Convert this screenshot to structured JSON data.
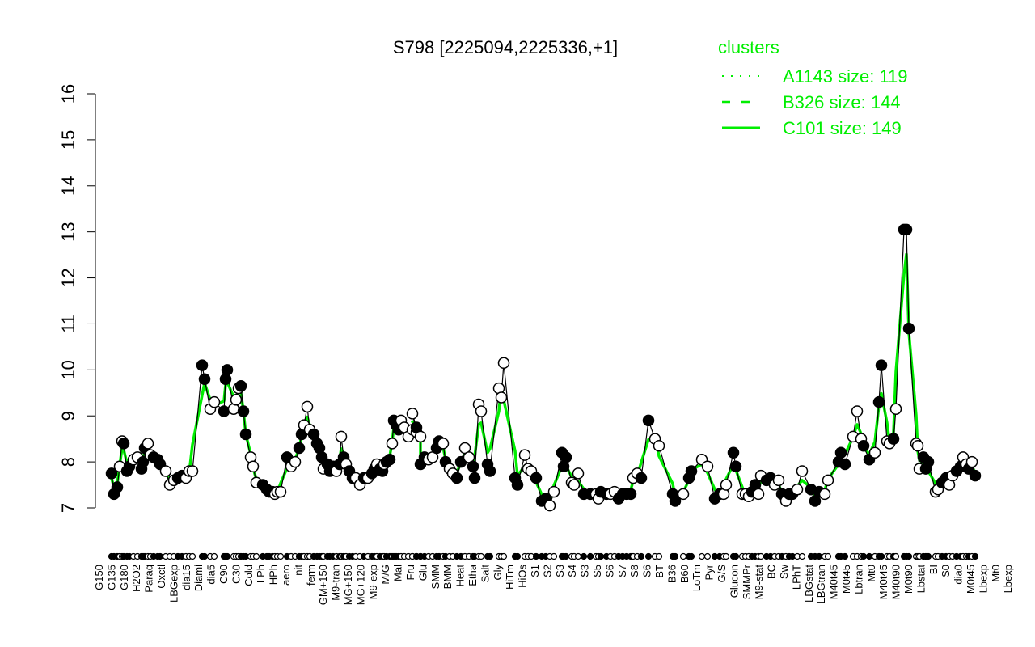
{
  "chart_data": {
    "type": "scatter",
    "title": "S798 [2225094,2225336,+1]",
    "xlabel": "",
    "ylabel": "",
    "ylim": [
      7,
      16
    ],
    "yticks": [
      7,
      8,
      9,
      10,
      11,
      12,
      13,
      14,
      15,
      16
    ],
    "grid": false,
    "legend": {
      "title": "clusters",
      "placement": "top-right",
      "entries": [
        {
          "label": "A1143 size: 119",
          "style": "dotted"
        },
        {
          "label": "B326 size: 144",
          "style": "dashed"
        },
        {
          "label": "C101 size: 149",
          "style": "solid"
        }
      ]
    },
    "colors": {
      "cluster_line": "#00ee00",
      "points_filled": "#000000",
      "points_open": "#ffffff"
    },
    "x_tick_labels": [
      "G150",
      "G135",
      "G180",
      "H2O2",
      "Paraq",
      "Oxctl",
      "LBGexp",
      "dia15",
      "Diami",
      "dia5",
      "C90",
      "C30",
      "Cold",
      "LPh",
      "HPh",
      "aero",
      "nit",
      "ferm",
      "GM+150",
      "M9-tran",
      "MG+150",
      "MG+120",
      "M9-exp",
      "M/G",
      "Mal",
      "Fru",
      "Glu",
      "SMM",
      "BMM",
      "Heat",
      "Etha",
      "Salt",
      "Gly",
      "HiTm",
      "HiOs",
      "S1",
      "S2",
      "S3",
      "S4",
      "S3",
      "S5",
      "S6",
      "S7",
      "S8",
      "S6",
      "BT",
      "B36",
      "B60",
      "LoTm",
      "Pyr",
      "G/S",
      "Glucon",
      "SMMPr",
      "M9-stat",
      "BC",
      "Sw",
      "LPhT",
      "LBGstat",
      "LBGtran",
      "M40t45",
      "M0t45",
      "Lbtran",
      "Mt0",
      "M40t45",
      "M40t90",
      "M0t90",
      "Lbstat",
      "BI",
      "S0",
      "dia0",
      "M0t45",
      "Lbexp",
      "Mt0",
      "Lbexp"
    ],
    "points": [
      [
        7.75,
        1
      ],
      [
        7.3,
        1
      ],
      [
        7.45,
        1
      ],
      [
        7.9,
        0
      ],
      [
        8.45,
        0
      ],
      [
        8.4,
        1
      ],
      [
        7.8,
        1
      ],
      [
        7.9,
        1
      ],
      [
        8.05,
        0
      ],
      [
        8.1,
        0
      ],
      [
        7.85,
        1
      ],
      [
        8.0,
        1
      ],
      [
        8.3,
        1
      ],
      [
        8.4,
        0
      ],
      [
        8.15,
        0
      ],
      [
        8.1,
        1
      ],
      [
        8.05,
        1
      ],
      [
        7.95,
        1
      ],
      [
        7.8,
        0
      ],
      [
        7.5,
        0
      ],
      [
        7.6,
        0
      ],
      [
        7.65,
        1
      ],
      [
        7.7,
        1
      ],
      [
        7.65,
        0
      ],
      [
        7.8,
        0
      ],
      [
        7.8,
        0
      ],
      [
        10.1,
        1
      ],
      [
        9.8,
        1
      ],
      [
        9.15,
        0
      ],
      [
        9.3,
        0
      ],
      [
        9.1,
        1
      ],
      [
        9.8,
        1
      ],
      [
        10.0,
        1
      ],
      [
        9.15,
        0
      ],
      [
        9.35,
        0
      ],
      [
        9.6,
        0
      ],
      [
        9.65,
        1
      ],
      [
        9.1,
        1
      ],
      [
        8.6,
        1
      ],
      [
        8.1,
        0
      ],
      [
        7.9,
        0
      ],
      [
        7.55,
        0
      ],
      [
        7.5,
        1
      ],
      [
        7.4,
        1
      ],
      [
        7.35,
        1
      ],
      [
        7.35,
        1
      ],
      [
        7.3,
        0
      ],
      [
        7.35,
        0
      ],
      [
        7.35,
        0
      ],
      [
        8.1,
        1
      ],
      [
        7.9,
        0
      ],
      [
        8.0,
        0
      ],
      [
        8.3,
        1
      ],
      [
        8.6,
        1
      ],
      [
        8.8,
        0
      ],
      [
        9.2,
        0
      ],
      [
        8.7,
        0
      ],
      [
        8.6,
        1
      ],
      [
        8.4,
        1
      ],
      [
        8.3,
        1
      ],
      [
        8.1,
        1
      ],
      [
        7.85,
        0
      ],
      [
        7.95,
        1
      ],
      [
        7.8,
        1
      ],
      [
        7.9,
        1
      ],
      [
        7.8,
        0
      ],
      [
        7.95,
        1
      ],
      [
        8.55,
        0
      ],
      [
        8.1,
        1
      ],
      [
        7.95,
        0
      ],
      [
        7.8,
        1
      ],
      [
        7.65,
        1
      ],
      [
        7.65,
        0
      ],
      [
        7.5,
        0
      ],
      [
        7.65,
        1
      ],
      [
        7.65,
        0
      ],
      [
        7.75,
        1
      ],
      [
        7.85,
        1
      ],
      [
        7.95,
        0
      ],
      [
        7.85,
        1
      ],
      [
        7.8,
        1
      ],
      [
        7.95,
        0
      ],
      [
        8.0,
        1
      ],
      [
        8.05,
        1
      ],
      [
        8.4,
        0
      ],
      [
        8.9,
        1
      ],
      [
        8.8,
        1
      ],
      [
        8.7,
        1
      ],
      [
        8.9,
        0
      ],
      [
        8.75,
        0
      ],
      [
        8.55,
        0
      ],
      [
        8.7,
        0
      ],
      [
        8.65,
        0
      ],
      [
        9.05,
        0
      ],
      [
        8.75,
        1
      ],
      [
        8.55,
        0
      ],
      [
        7.95,
        1
      ],
      [
        8.1,
        1
      ],
      [
        8.05,
        0
      ],
      [
        8.1,
        0
      ],
      [
        8.3,
        1
      ],
      [
        8.45,
        1
      ],
      [
        8.4,
        0
      ],
      [
        8.0,
        1
      ],
      [
        7.85,
        0
      ],
      [
        7.75,
        0
      ],
      [
        7.65,
        1
      ],
      [
        8.0,
        1
      ],
      [
        8.3,
        0
      ],
      [
        8.1,
        0
      ],
      [
        7.9,
        1
      ],
      [
        7.65,
        1
      ],
      [
        9.25,
        0
      ],
      [
        9.1,
        0
      ],
      [
        7.95,
        1
      ],
      [
        7.8,
        1
      ],
      [
        9.6,
        0
      ],
      [
        9.4,
        0
      ],
      [
        10.15,
        0
      ],
      [
        7.65,
        1
      ],
      [
        7.5,
        1
      ],
      [
        8.15,
        0
      ],
      [
        7.85,
        0
      ],
      [
        7.8,
        0
      ],
      [
        7.65,
        1
      ],
      [
        7.15,
        1
      ],
      [
        7.2,
        1
      ],
      [
        7.05,
        0
      ],
      [
        7.35,
        0
      ],
      [
        8.2,
        1
      ],
      [
        7.9,
        1
      ],
      [
        8.1,
        1
      ],
      [
        7.55,
        0
      ],
      [
        7.5,
        0
      ],
      [
        7.75,
        0
      ],
      [
        7.3,
        1
      ],
      [
        7.3,
        1
      ],
      [
        7.3,
        0
      ],
      [
        7.2,
        0
      ],
      [
        7.35,
        1
      ],
      [
        7.3,
        1
      ],
      [
        7.3,
        0
      ],
      [
        7.35,
        0
      ],
      [
        7.2,
        1
      ],
      [
        7.3,
        1
      ],
      [
        7.3,
        1
      ],
      [
        7.3,
        1
      ],
      [
        7.65,
        0
      ],
      [
        7.75,
        0
      ],
      [
        7.65,
        1
      ],
      [
        8.9,
        1
      ],
      [
        8.5,
        0
      ],
      [
        8.35,
        0
      ],
      [
        7.3,
        1
      ],
      [
        7.15,
        1
      ],
      [
        7.3,
        0
      ],
      [
        7.65,
        1
      ],
      [
        7.8,
        1
      ],
      [
        8.05,
        0
      ],
      [
        7.9,
        0
      ],
      [
        7.2,
        1
      ],
      [
        7.3,
        1
      ],
      [
        7.3,
        0
      ],
      [
        7.5,
        0
      ],
      [
        8.2,
        1
      ],
      [
        7.9,
        1
      ],
      [
        7.3,
        0
      ],
      [
        7.3,
        0
      ],
      [
        7.25,
        0
      ],
      [
        7.35,
        1
      ],
      [
        7.5,
        1
      ],
      [
        7.3,
        0
      ],
      [
        7.7,
        0
      ],
      [
        7.6,
        1
      ],
      [
        7.65,
        1
      ],
      [
        7.5,
        0
      ],
      [
        7.6,
        0
      ],
      [
        7.3,
        1
      ],
      [
        7.15,
        0
      ],
      [
        7.3,
        1
      ],
      [
        7.3,
        1
      ],
      [
        7.4,
        0
      ],
      [
        7.8,
        0
      ],
      [
        7.4,
        1
      ],
      [
        7.15,
        1
      ],
      [
        7.35,
        1
      ],
      [
        7.3,
        0
      ],
      [
        7.6,
        0
      ],
      [
        8.0,
        1
      ],
      [
        8.2,
        1
      ],
      [
        7.95,
        1
      ],
      [
        8.55,
        0
      ],
      [
        9.1,
        0
      ],
      [
        8.5,
        0
      ],
      [
        8.35,
        1
      ],
      [
        8.05,
        1
      ],
      [
        8.2,
        0
      ],
      [
        9.3,
        1
      ],
      [
        10.1,
        1
      ],
      [
        8.45,
        0
      ],
      [
        8.4,
        0
      ],
      [
        8.5,
        1
      ],
      [
        9.15,
        0
      ],
      [
        13.05,
        1
      ],
      [
        13.05,
        1
      ],
      [
        10.9,
        1
      ],
      [
        8.4,
        0
      ],
      [
        8.35,
        0
      ],
      [
        7.85,
        0
      ],
      [
        8.1,
        1
      ],
      [
        7.85,
        1
      ],
      [
        8.0,
        1
      ],
      [
        7.35,
        0
      ],
      [
        7.4,
        0
      ],
      [
        7.55,
        1
      ],
      [
        7.65,
        1
      ],
      [
        7.5,
        0
      ],
      [
        7.7,
        0
      ],
      [
        7.8,
        1
      ],
      [
        7.9,
        1
      ],
      [
        8.1,
        0
      ],
      [
        7.95,
        0
      ],
      [
        7.85,
        1
      ],
      [
        8.0,
        0
      ],
      [
        7.7,
        1
      ]
    ]
  }
}
